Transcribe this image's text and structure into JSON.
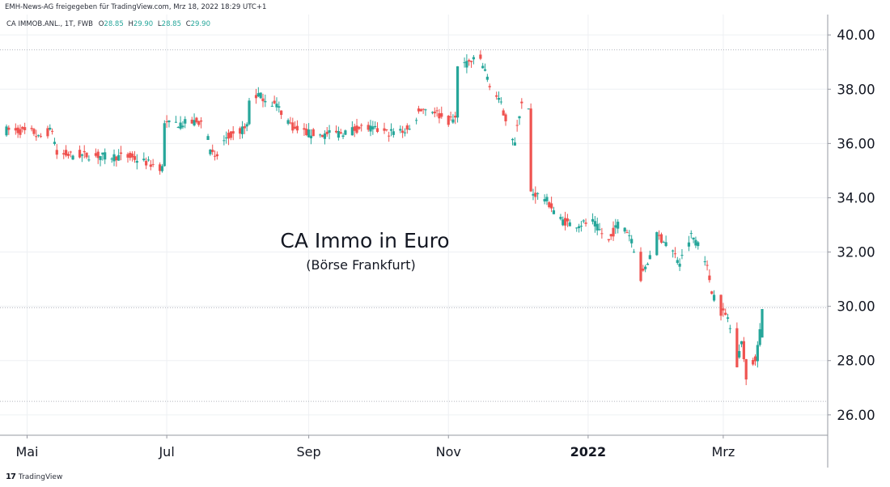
{
  "header": {
    "share_line": "EMH-News-AG freigegeben für TradingView.com, Mrz 18, 2022 18:29 UTC+1"
  },
  "legend": {
    "symbol": "CA IMMOB.ANL., 1T, FWB",
    "o_label": "O",
    "o_value": "28.85",
    "h_label": "H",
    "h_value": "29.90",
    "l_label": "L",
    "l_value": "28.85",
    "c_label": "C",
    "c_value": "29.90"
  },
  "annotation": {
    "title": "CA Immo in Euro",
    "subtitle": "(Börse Frankfurt)"
  },
  "footer": {
    "brand": "TradingView",
    "logo_text": "17"
  },
  "colors": {
    "up": "#26a69a",
    "up_dark": "#1e7f73",
    "down": "#ef5350",
    "grid": "#eef0f3",
    "axis": "#9598a1",
    "text": "#131722",
    "dotted": "#b2b5be"
  },
  "chart_data": {
    "type": "candlestick",
    "title": "CA Immo in Euro",
    "subtitle": "(Börse Frankfurt)",
    "x_range": [
      "2021-04-22",
      "2022-03-18"
    ],
    "ylim": [
      25.25,
      40.75
    ],
    "y_ticks": [
      "40.00",
      "38.00",
      "36.00",
      "34.00",
      "32.00",
      "30.00",
      "28.00",
      "26.00"
    ],
    "x_ticks": [
      {
        "label": "Mai",
        "date": "2021-05-01",
        "bold": false
      },
      {
        "label": "Jul",
        "date": "2021-07-01",
        "bold": false
      },
      {
        "label": "Sep",
        "date": "2021-09-01",
        "bold": false
      },
      {
        "label": "Nov",
        "date": "2021-11-01",
        "bold": false
      },
      {
        "label": "2022",
        "date": "2022-01-01",
        "bold": true
      },
      {
        "label": "Mrz",
        "date": "2022-03-01",
        "bold": false
      }
    ],
    "horizontal_lines": [
      39.45,
      29.95,
      26.5
    ],
    "grid": true,
    "price_axis": "right",
    "anchors": [
      [
        "2021-04-22",
        36.5
      ],
      [
        "2021-05-04",
        36.4
      ],
      [
        "2021-05-06",
        36.2
      ],
      [
        "2021-05-12",
        36.5
      ],
      [
        "2021-05-14",
        35.6
      ],
      [
        "2021-06-15",
        35.5
      ],
      [
        "2021-06-29",
        35.1
      ],
      [
        "2021-06-30",
        36.7
      ],
      [
        "2021-07-18",
        36.8
      ],
      [
        "2021-07-20",
        35.8
      ],
      [
        "2021-07-22",
        35.4
      ],
      [
        "2021-07-26",
        36.1
      ],
      [
        "2021-08-05",
        36.6
      ],
      [
        "2021-08-06",
        37.6
      ],
      [
        "2021-08-10",
        37.8
      ],
      [
        "2021-08-18",
        37.4
      ],
      [
        "2021-08-26",
        36.5
      ],
      [
        "2021-09-05",
        36.3
      ],
      [
        "2021-09-15",
        36.4
      ],
      [
        "2021-09-25",
        36.6
      ],
      [
        "2021-10-05",
        36.4
      ],
      [
        "2021-10-15",
        36.5
      ],
      [
        "2021-10-20",
        37.3
      ],
      [
        "2021-10-26",
        37.2
      ],
      [
        "2021-10-31",
        36.8
      ],
      [
        "2021-11-04",
        36.9
      ],
      [
        "2021-11-05",
        38.9
      ],
      [
        "2021-11-15",
        39.1
      ],
      [
        "2021-11-19",
        38.2
      ],
      [
        "2021-11-24",
        37.4
      ],
      [
        "2021-11-30",
        36.0
      ],
      [
        "2021-12-02",
        37.1
      ],
      [
        "2021-12-04",
        38.0
      ],
      [
        "2021-12-06",
        37.2
      ],
      [
        "2021-12-07",
        34.2
      ],
      [
        "2021-12-13",
        34.0
      ],
      [
        "2021-12-20",
        33.2
      ],
      [
        "2021-12-25",
        33.0
      ],
      [
        "2022-01-03",
        33.1
      ],
      [
        "2022-01-10",
        32.4
      ],
      [
        "2022-01-15",
        33.2
      ],
      [
        "2022-01-20",
        32.5
      ],
      [
        "2022-01-24",
        31.0
      ],
      [
        "2022-01-27",
        31.6
      ],
      [
        "2022-01-31",
        32.6
      ],
      [
        "2022-02-05",
        32.3
      ],
      [
        "2022-02-10",
        31.6
      ],
      [
        "2022-02-15",
        32.6
      ],
      [
        "2022-02-20",
        32.2
      ],
      [
        "2022-02-24",
        30.6
      ],
      [
        "2022-02-28",
        29.8
      ],
      [
        "2022-03-03",
        29.6
      ],
      [
        "2022-03-07",
        27.8
      ],
      [
        "2022-03-09",
        28.8
      ],
      [
        "2022-03-11",
        27.2
      ],
      [
        "2022-03-15",
        28.1
      ],
      [
        "2022-03-18",
        29.9
      ]
    ],
    "last_candle": {
      "date": "2022-03-18",
      "open": 28.85,
      "high": 29.9,
      "low": 28.85,
      "close": 29.9
    }
  }
}
